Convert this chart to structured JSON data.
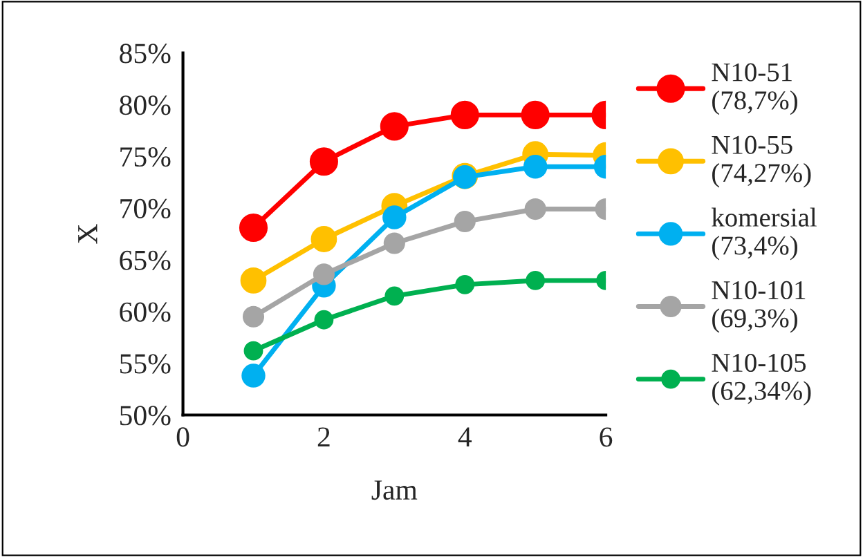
{
  "chart_data": {
    "type": "line",
    "xlabel": "Jam",
    "ylabel": "X",
    "x": [
      1,
      2,
      3,
      4,
      5,
      6
    ],
    "series": [
      {
        "name": "N10-51\n(78,7%)",
        "color": "#ff0000",
        "values": [
          68.1,
          74.5,
          77.9,
          79.0,
          79.0,
          79.0
        ]
      },
      {
        "name": "N10-55\n(74,27%)",
        "color": "#ffc000",
        "values": [
          63.0,
          67.0,
          70.2,
          73.1,
          75.2,
          75.1
        ]
      },
      {
        "name": "komersial\n(73,4%)",
        "color": "#00b0f0",
        "values": [
          53.8,
          62.5,
          69.1,
          73.0,
          74.0,
          74.0
        ]
      },
      {
        "name": "N10-101\n(69,3%)",
        "color": "#a5a5a5",
        "values": [
          59.5,
          63.6,
          66.6,
          68.7,
          69.9,
          69.9
        ]
      },
      {
        "name": "N10-105\n(62,34%)",
        "color": "#00b050",
        "values": [
          56.2,
          59.2,
          61.5,
          62.6,
          63.0,
          63.0
        ]
      }
    ],
    "xlim": [
      0,
      6
    ],
    "xticks": [
      0,
      2,
      4,
      6
    ],
    "ylim": [
      50,
      85
    ],
    "yticks": [
      {
        "value": 50,
        "label": "50%"
      },
      {
        "value": 55,
        "label": "55%"
      },
      {
        "value": 60,
        "label": "60%"
      },
      {
        "value": 65,
        "label": "65%"
      },
      {
        "value": 70,
        "label": "70%"
      },
      {
        "value": 75,
        "label": "75%"
      },
      {
        "value": 80,
        "label": "80%"
      },
      {
        "value": 85,
        "label": "85%"
      }
    ],
    "grid": false,
    "legend": "right",
    "marker": "circle",
    "line_style": "solid"
  }
}
